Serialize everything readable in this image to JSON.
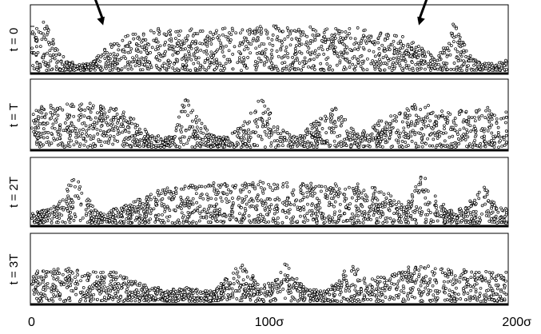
{
  "chart_data": {
    "type": "scatter",
    "x_ticks": [
      "0",
      "100σ",
      "200σ"
    ],
    "xlim": [
      0,
      200
    ],
    "x_tick_values": [
      0,
      100,
      200
    ],
    "panels": [
      {
        "label": "t = 0",
        "y_tick": "1",
        "profile": [
          [
            0,
            0.55
          ],
          [
            2,
            0.65
          ],
          [
            5,
            0.75
          ],
          [
            8,
            0.5
          ],
          [
            12,
            0.25
          ],
          [
            18,
            0.1
          ],
          [
            25,
            0.12
          ],
          [
            30,
            0.3
          ],
          [
            38,
            0.5
          ],
          [
            50,
            0.58
          ],
          [
            100,
            0.62
          ],
          [
            140,
            0.6
          ],
          [
            160,
            0.45
          ],
          [
            170,
            0.2
          ],
          [
            176,
            0.45
          ],
          [
            178,
            0.75
          ],
          [
            180,
            0.55
          ],
          [
            185,
            0.2
          ],
          [
            195,
            0.1
          ],
          [
            200,
            0.15
          ]
        ],
        "arrows": [
          {
            "x": 30,
            "y": 0.72
          },
          {
            "x": 163,
            "y": 0.72
          }
        ]
      },
      {
        "label": "t = T",
        "profile": [
          [
            0,
            0.55
          ],
          [
            20,
            0.62
          ],
          [
            40,
            0.5
          ],
          [
            50,
            0.2
          ],
          [
            55,
            0.12
          ],
          [
            60,
            0.2
          ],
          [
            63,
            0.55
          ],
          [
            65,
            0.7
          ],
          [
            68,
            0.5
          ],
          [
            75,
            0.2
          ],
          [
            82,
            0.15
          ],
          [
            87,
            0.3
          ],
          [
            93,
            0.5
          ],
          [
            96,
            0.7
          ],
          [
            99,
            0.55
          ],
          [
            104,
            0.3
          ],
          [
            112,
            0.15
          ],
          [
            117,
            0.3
          ],
          [
            125,
            0.5
          ],
          [
            129,
            0.55
          ],
          [
            133,
            0.4
          ],
          [
            137,
            0.2
          ],
          [
            142,
            0.25
          ],
          [
            150,
            0.45
          ],
          [
            165,
            0.6
          ],
          [
            175,
            0.5
          ],
          [
            190,
            0.55
          ],
          [
            200,
            0.5
          ]
        ]
      },
      {
        "label": "t = 2T",
        "profile": [
          [
            0,
            0.15
          ],
          [
            10,
            0.25
          ],
          [
            15,
            0.5
          ],
          [
            18,
            0.7
          ],
          [
            22,
            0.45
          ],
          [
            28,
            0.15
          ],
          [
            33,
            0.18
          ],
          [
            45,
            0.35
          ],
          [
            55,
            0.5
          ],
          [
            65,
            0.55
          ],
          [
            100,
            0.58
          ],
          [
            140,
            0.55
          ],
          [
            150,
            0.45
          ],
          [
            158,
            0.25
          ],
          [
            162,
            0.55
          ],
          [
            165,
            0.75
          ],
          [
            168,
            0.5
          ],
          [
            175,
            0.2
          ],
          [
            183,
            0.25
          ],
          [
            188,
            0.45
          ],
          [
            190,
            0.55
          ],
          [
            193,
            0.4
          ],
          [
            200,
            0.2
          ]
        ]
      },
      {
        "label": "t = 3T",
        "profile": [
          [
            0,
            0.42
          ],
          [
            15,
            0.45
          ],
          [
            35,
            0.4
          ],
          [
            50,
            0.22
          ],
          [
            56,
            0.15
          ],
          [
            65,
            0.2
          ],
          [
            75,
            0.15
          ],
          [
            80,
            0.25
          ],
          [
            85,
            0.45
          ],
          [
            88,
            0.55
          ],
          [
            92,
            0.4
          ],
          [
            97,
            0.2
          ],
          [
            102,
            0.3
          ],
          [
            106,
            0.55
          ],
          [
            110,
            0.4
          ],
          [
            115,
            0.2
          ],
          [
            122,
            0.15
          ],
          [
            128,
            0.25
          ],
          [
            132,
            0.45
          ],
          [
            135,
            0.55
          ],
          [
            138,
            0.4
          ],
          [
            142,
            0.3
          ],
          [
            150,
            0.4
          ],
          [
            165,
            0.5
          ],
          [
            180,
            0.45
          ],
          [
            200,
            0.42
          ]
        ]
      }
    ]
  }
}
